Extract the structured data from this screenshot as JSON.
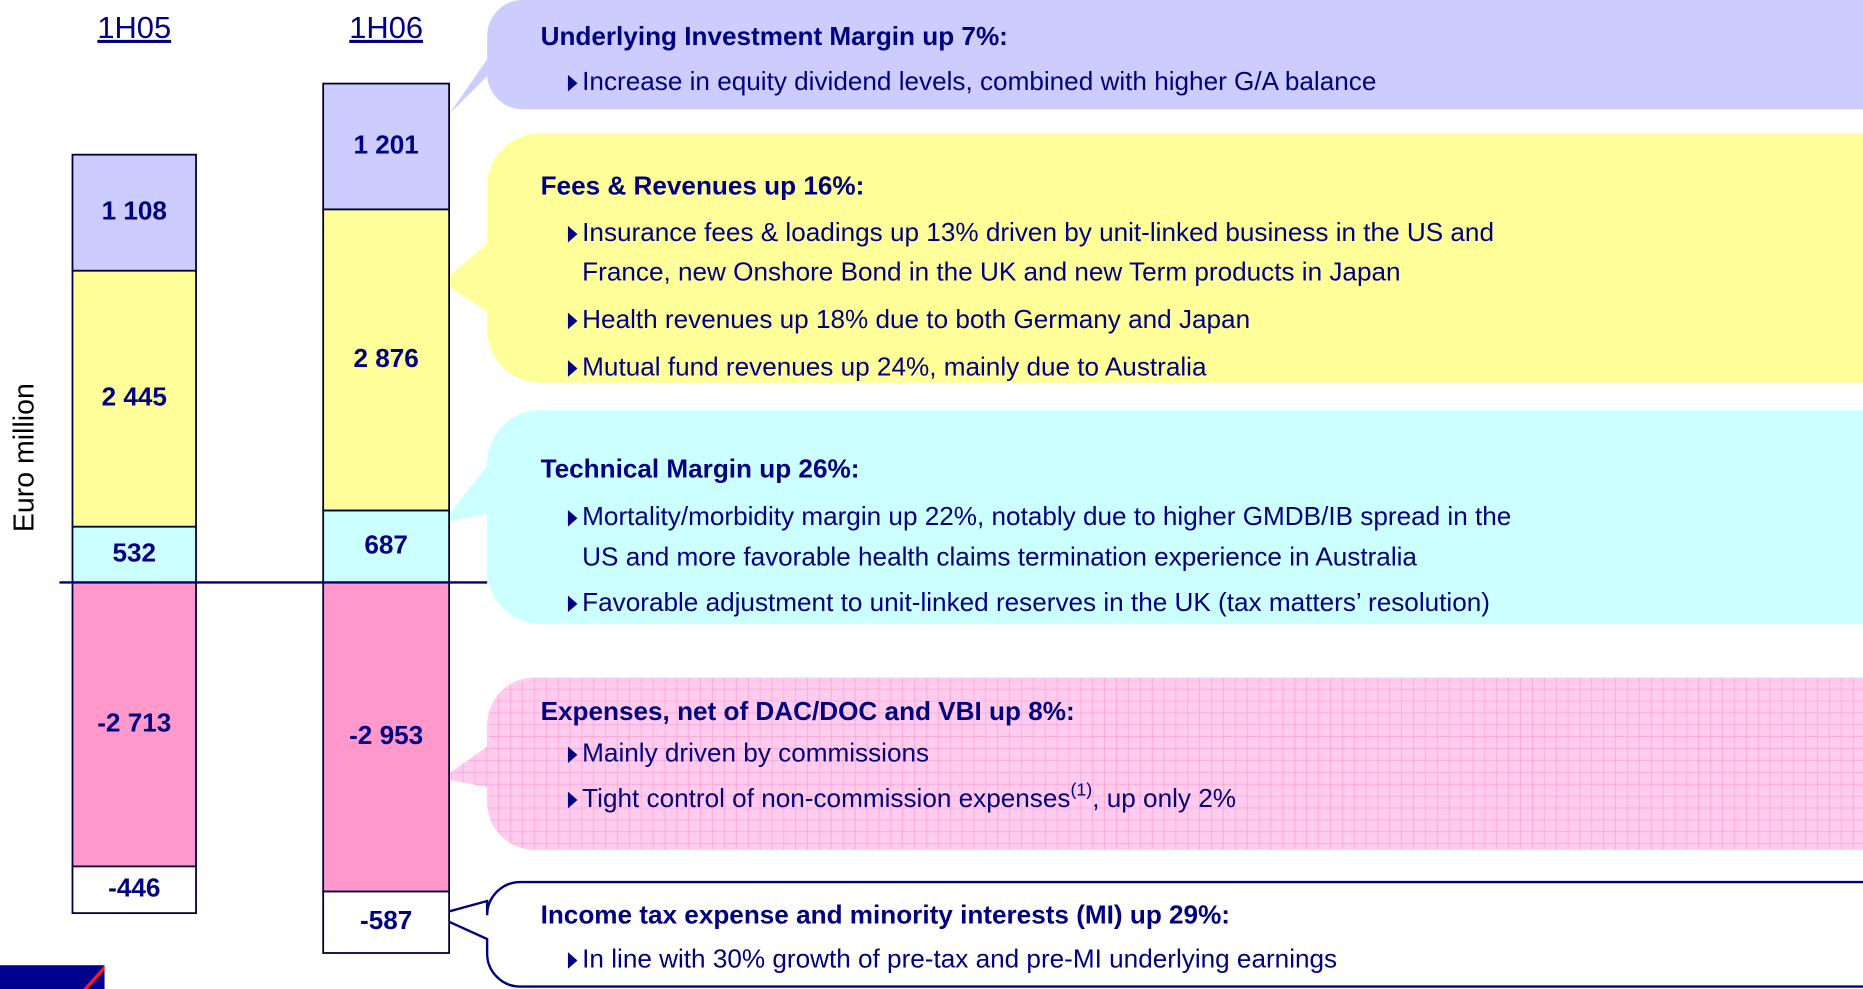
{
  "chart_data": {
    "type": "bar",
    "stacked": true,
    "y_label": "Euro million",
    "categories": [
      "1H05",
      "1H06"
    ],
    "ylim": [
      -3600,
      5400
    ],
    "series": [
      {
        "color": "#ccffff",
        "values": [
          532,
          687
        ],
        "value_labels": [
          "532",
          "687"
        ]
      },
      {
        "color": "#ffff99",
        "values": [
          2445,
          2876
        ],
        "value_labels": [
          "2 445",
          "2 876"
        ]
      },
      {
        "color": "#ccccff",
        "values": [
          1108,
          1201
        ],
        "value_labels": [
          "1 108",
          "1 201"
        ]
      },
      {
        "color": "#ff99cc",
        "values": [
          -2713,
          -2953
        ],
        "value_labels": [
          "-2 713",
          "-2 953"
        ]
      },
      {
        "color": "#ffffff",
        "values": [
          -446,
          -587
        ],
        "value_labels": [
          "-446",
          "-587"
        ]
      }
    ],
    "annotations": [
      {
        "title": "Underlying Investment Margin up 7%:",
        "color": "#ccccff",
        "bullets": [
          [
            "Increase in equity dividend levels, combined with higher G/A balance"
          ]
        ]
      },
      {
        "title": "Fees & Revenues up 16%:",
        "color": "#ffff99",
        "bullets": [
          [
            "Insurance fees & loadings up 13% driven by unit-linked business in the US and",
            "France, new Onshore Bond in the UK and new Term products in Japan"
          ],
          [
            "Health revenues up 18% due to both Germany and Japan"
          ],
          [
            "Mutual fund revenues up 24%, mainly due to Australia"
          ]
        ]
      },
      {
        "title": "Technical Margin up 26%:",
        "color": "#ccffff",
        "bullets": [
          [
            "Mortality/morbidity margin up 22%, notably due to higher GMDB/IB spread in the",
            "US and more favorable health claims termination experience in Australia"
          ],
          [
            "Favorable adjustment to unit-linked reserves in the UK (tax matters’ resolution)"
          ]
        ]
      },
      {
        "title": "Expenses, net of DAC/DOC and VBI up 8%:",
        "color": "#ffccee",
        "bullets": [
          [
            "Mainly driven by commissions"
          ],
          [
            {
              "text": "Tight control of non-commission expenses",
              "sup": "(1)",
              "after": ", up only 2%"
            }
          ]
        ]
      },
      {
        "title": "Income tax expense and minority interests (MI) up 29%:",
        "color": "#ffffff",
        "bullets": [
          [
            "In line with 30% growth of pre-tax and pre-MI underlying earnings"
          ]
        ]
      }
    ]
  }
}
